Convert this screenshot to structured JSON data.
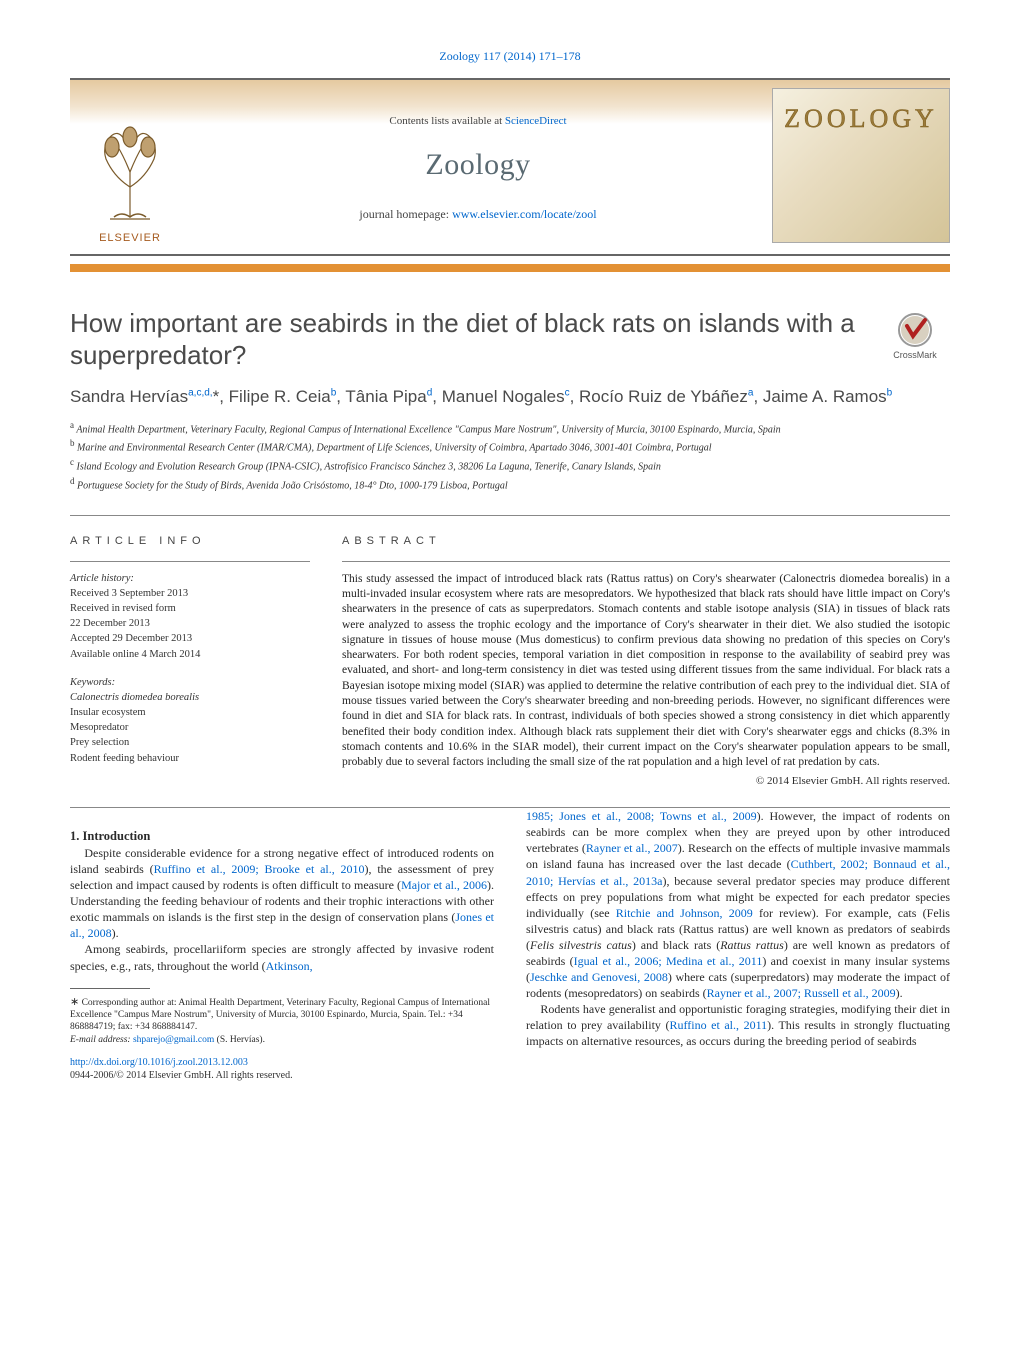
{
  "journal_ref_link": "Zoology 117 (2014) 171–178",
  "header": {
    "contents_prefix": "Contents lists available at ",
    "contents_link": "ScienceDirect",
    "journal_title": "Zoology",
    "homepage_prefix": "journal homepage: ",
    "homepage_link": "www.elsevier.com/locate/zool",
    "elsevier_word": "ELSEVIER",
    "cover_word": "ZOOLOGY"
  },
  "colors": {
    "orange_bar": "#e39134",
    "link": "#0066cc",
    "grad_top": "#e5c9a0",
    "grad_bottom": "#ffffff",
    "text_grey": "#4a4a4a"
  },
  "crossmark_label": "CrossMark",
  "title": "How important are seabirds in the diet of black rats on islands with a superpredator?",
  "authors_html": "Sandra Hervías<sup>a,c,d,</sup>*, Filipe R. Ceia<sup>b</sup>, Tânia Pipa<sup>d</sup>, Manuel Nogales<sup>c</sup>, Rocío Ruiz de Ybáñez<sup>a</sup>, Jaime A. Ramos<sup>b</sup>",
  "authors": [
    {
      "name": "Sandra Hervías",
      "aff": "a,c,d,",
      "corr": true
    },
    {
      "name": "Filipe R. Ceia",
      "aff": "b"
    },
    {
      "name": "Tânia Pipa",
      "aff": "d"
    },
    {
      "name": "Manuel Nogales",
      "aff": "c"
    },
    {
      "name": "Rocío Ruiz de Ybáñez",
      "aff": "a"
    },
    {
      "name": "Jaime A. Ramos",
      "aff": "b"
    }
  ],
  "affiliations": [
    {
      "key": "a",
      "text": "Animal Health Department, Veterinary Faculty, Regional Campus of International Excellence \"Campus Mare Nostrum\", University of Murcia, 30100 Espinardo, Murcia, Spain"
    },
    {
      "key": "b",
      "text": "Marine and Environmental Research Center (IMAR/CMA), Department of Life Sciences, University of Coimbra, Apartado 3046, 3001-401 Coimbra, Portugal"
    },
    {
      "key": "c",
      "text": "Island Ecology and Evolution Research Group (IPNA-CSIC), Astrofísico Francisco Sánchez 3, 38206 La Laguna, Tenerife, Canary Islands, Spain"
    },
    {
      "key": "d",
      "text": "Portuguese Society for the Study of Birds, Avenida João Crisóstomo, 18-4° Dto, 1000-179 Lisboa, Portugal"
    }
  ],
  "article_info": {
    "heading": "article info",
    "history_label": "Article history:",
    "history": [
      "Received 3 September 2013",
      "Received in revised form",
      "22 December 2013",
      "Accepted 29 December 2013",
      "Available online 4 March 2014"
    ],
    "keywords_label": "Keywords:",
    "keywords": [
      "Calonectris diomedea borealis",
      "Insular ecosystem",
      "Mesopredator",
      "Prey selection",
      "Rodent feeding behaviour"
    ]
  },
  "abstract": {
    "heading": "abstract",
    "text": "This study assessed the impact of introduced black rats (Rattus rattus) on Cory's shearwater (Calonectris diomedea borealis) in a multi-invaded insular ecosystem where rats are mesopredators. We hypothesized that black rats should have little impact on Cory's shearwaters in the presence of cats as superpredators. Stomach contents and stable isotope analysis (SIA) in tissues of black rats were analyzed to assess the trophic ecology and the importance of Cory's shearwater in their diet. We also studied the isotopic signature in tissues of house mouse (Mus domesticus) to confirm previous data showing no predation of this species on Cory's shearwaters. For both rodent species, temporal variation in diet composition in response to the availability of seabird prey was evaluated, and short- and long-term consistency in diet was tested using different tissues from the same individual. For black rats a Bayesian isotope mixing model (SIAR) was applied to determine the relative contribution of each prey to the individual diet. SIA of mouse tissues varied between the Cory's shearwater breeding and non-breeding periods. However, no significant differences were found in diet and SIA for black rats. In contrast, individuals of both species showed a strong consistency in diet which apparently benefited their body condition index. Although black rats supplement their diet with Cory's shearwater eggs and chicks (8.3% in stomach contents and 10.6% in the SIAR model), their current impact on the Cory's shearwater population appears to be small, probably due to several factors including the small size of the rat population and a high level of rat predation by cats.",
    "copyright": "© 2014 Elsevier GmbH. All rights reserved."
  },
  "intro": {
    "heading": "1.  Introduction",
    "p1_pre": "Despite considerable evidence for a strong negative effect of introduced rodents on island seabirds (",
    "p1_link1": "Ruffino et al., 2009; Brooke et al., 2010",
    "p1_mid1": "), the assessment of prey selection and impact caused by rodents is often difficult to measure (",
    "p1_link2": "Major et al., 2006",
    "p1_mid2": "). Understanding the feeding behaviour of rodents and their trophic interactions with other exotic mammals on islands is the first step in the design of conservation plans (",
    "p1_link3": "Jones et al., 2008",
    "p1_end": ").",
    "p2_pre": "Among seabirds, procellariiform species are strongly affected by invasive rodent species, e.g., rats, throughout the world (",
    "p2_link1": "Atkinson,",
    "p3_link1": "1985; Jones et al., 2008; Towns et al., 2009",
    "p3_mid1": "). However, the impact of rodents on seabirds can be more complex when they are preyed upon by other introduced vertebrates (",
    "p3_link2": "Rayner et al., 2007",
    "p3_mid2": "). Research on the effects of multiple invasive mammals on island fauna has increased over the last decade (",
    "p3_link3": "Cuthbert, 2002; Bonnaud et al., 2010; Hervías et al., 2013a",
    "p3_mid3": "), because several predator species may produce different effects on prey populations from what might be expected for each predator species individually (see ",
    "p3_link4": "Ritchie and Johnson, 2009",
    "p3_mid4": " for review). For example, cats (Felis silvestris catus) and black rats (Rattus rattus) are well known as predators of seabirds (",
    "p3_link5": "Igual et al., 2006; Medina et al., 2011",
    "p3_mid5": ") and coexist in many insular systems (",
    "p3_link6": "Jeschke and Genovesi, 2008",
    "p3_mid6": ") where cats (superpredators) may moderate the impact of rodents (mesopredators) on seabirds (",
    "p3_link7": "Rayner et al., 2007; Russell et al., 2009",
    "p3_end": ").",
    "p4_pre": "Rodents have generalist and opportunistic foraging strategies, modifying their diet in relation to prey availability (",
    "p4_link1": "Ruffino et al., 2011",
    "p4_end": "). This results in strongly fluctuating impacts on alternative resources, as occurs during the breeding period of seabirds"
  },
  "footnote": {
    "corr_label": "∗",
    "corr_text": "Corresponding author at: Animal Health Department, Veterinary Faculty, Regional Campus of International Excellence \"Campus Mare Nostrum\", University of Murcia, 30100 Espinardo, Murcia, Spain. Tel.: +34 868884719; fax: +34 868884147.",
    "email_label": "E-mail address: ",
    "email": "shparejo@gmail.com",
    "email_suffix": " (S. Hervías).",
    "doi": "http://dx.doi.org/10.1016/j.zool.2013.12.003",
    "issn": "0944-2006/© 2014 Elsevier GmbH. All rights reserved."
  }
}
